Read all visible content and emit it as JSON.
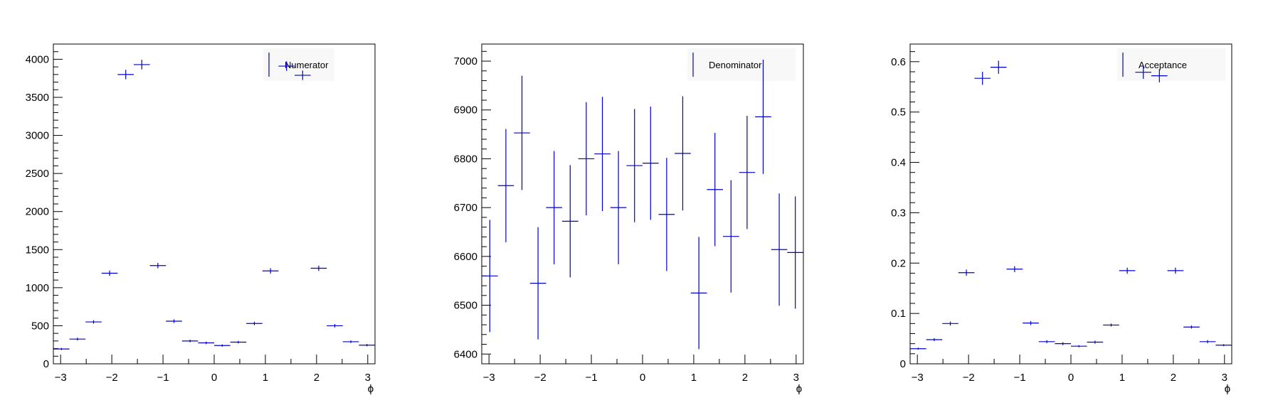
{
  "colors": {
    "marker": "#0000cc",
    "axis": "#000000",
    "legend_bg": "#f8f8f8"
  },
  "chart_data": [
    {
      "type": "scatter",
      "title": "",
      "xlabel": "ϕ",
      "ylabel": "",
      "xlim": [
        -3.14159,
        3.14159
      ],
      "ylim": [
        0,
        4200
      ],
      "grid": false,
      "legend": {
        "label": "Numerator",
        "position": "top-right"
      },
      "x_ticks": [
        -3,
        -2,
        -1,
        0,
        1,
        2,
        3
      ],
      "x_tick_labels": [
        "−3",
        "−2",
        "−1",
        "0",
        "1",
        "2",
        "3"
      ],
      "y_ticks": [
        0,
        500,
        1000,
        1500,
        2000,
        2500,
        3000,
        3500,
        4000
      ],
      "y_tick_labels": [
        "0",
        "500",
        "1000",
        "1500",
        "2000",
        "2500",
        "3000",
        "3500",
        "4000"
      ],
      "x": [
        -2.984,
        -2.67,
        -2.356,
        -2.042,
        -1.728,
        -1.414,
        -1.1,
        -0.785,
        -0.471,
        -0.157,
        0.157,
        0.471,
        0.785,
        1.1,
        1.414,
        1.728,
        2.042,
        2.356,
        2.67,
        2.984
      ],
      "y": [
        195,
        325,
        550,
        1190,
        3800,
        3930,
        1290,
        560,
        300,
        275,
        240,
        285,
        530,
        1220,
        3910,
        3790,
        1255,
        500,
        290,
        245
      ],
      "yerr": [
        14,
        18,
        23,
        35,
        62,
        63,
        36,
        24,
        17,
        17,
        15,
        17,
        23,
        35,
        63,
        62,
        35,
        22,
        17,
        16
      ]
    },
    {
      "type": "scatter",
      "title": "",
      "xlabel": "ϕ",
      "ylabel": "",
      "xlim": [
        -3.14159,
        3.14159
      ],
      "ylim": [
        6380,
        7035
      ],
      "grid": false,
      "legend": {
        "label": "Denominator",
        "position": "top-right"
      },
      "x_ticks": [
        -3,
        -2,
        -1,
        0,
        1,
        2,
        3
      ],
      "x_tick_labels": [
        "−3",
        "−2",
        "−1",
        "0",
        "1",
        "2",
        "3"
      ],
      "y_ticks": [
        6400,
        6500,
        6600,
        6700,
        6800,
        6900,
        7000
      ],
      "y_tick_labels": [
        "6400",
        "6500",
        "6600",
        "6700",
        "6800",
        "6900",
        "7000"
      ],
      "x": [
        -2.984,
        -2.67,
        -2.356,
        -2.042,
        -1.728,
        -1.414,
        -1.1,
        -0.785,
        -0.471,
        -0.157,
        0.157,
        0.471,
        0.785,
        1.1,
        1.414,
        1.728,
        2.042,
        2.356,
        2.67,
        2.984
      ],
      "y": [
        6560,
        6745,
        6853,
        6545,
        6700,
        6672,
        6800,
        6810,
        6700,
        6786,
        6791,
        6686,
        6811,
        6525,
        6737,
        6641,
        6772,
        6886,
        6614,
        6608
      ],
      "yerr": [
        115,
        116,
        117,
        115,
        116,
        115,
        116,
        117,
        116,
        116,
        116,
        116,
        117,
        115,
        116,
        115,
        116,
        117,
        115,
        115
      ]
    },
    {
      "type": "scatter",
      "title": "",
      "xlabel": "ϕ",
      "ylabel": "",
      "xlim": [
        -3.14159,
        3.14159
      ],
      "ylim": [
        0,
        0.635
      ],
      "grid": false,
      "legend": {
        "label": "Acceptance",
        "position": "top-right"
      },
      "x_ticks": [
        -3,
        -2,
        -1,
        0,
        1,
        2,
        3
      ],
      "x_tick_labels": [
        "−3",
        "−2",
        "−1",
        "0",
        "1",
        "2",
        "3"
      ],
      "y_ticks": [
        0,
        0.1,
        0.2,
        0.3,
        0.4,
        0.5,
        0.6
      ],
      "y_tick_labels": [
        "0",
        "0.1",
        "0.2",
        "0.3",
        "0.4",
        "0.5",
        "0.6"
      ],
      "x": [
        -2.984,
        -2.67,
        -2.356,
        -2.042,
        -1.728,
        -1.414,
        -1.1,
        -0.785,
        -0.471,
        -0.157,
        0.157,
        0.471,
        0.785,
        1.1,
        1.414,
        1.728,
        2.042,
        2.356,
        2.67,
        2.984
      ],
      "y": [
        0.03,
        0.048,
        0.08,
        0.181,
        0.567,
        0.589,
        0.188,
        0.081,
        0.044,
        0.04,
        0.035,
        0.043,
        0.077,
        0.185,
        0.579,
        0.572,
        0.185,
        0.073,
        0.044,
        0.037
      ],
      "yerr": [
        0.002,
        0.003,
        0.004,
        0.006,
        0.013,
        0.013,
        0.006,
        0.004,
        0.003,
        0.003,
        0.002,
        0.003,
        0.003,
        0.006,
        0.013,
        0.013,
        0.006,
        0.003,
        0.003,
        0.002
      ]
    }
  ]
}
